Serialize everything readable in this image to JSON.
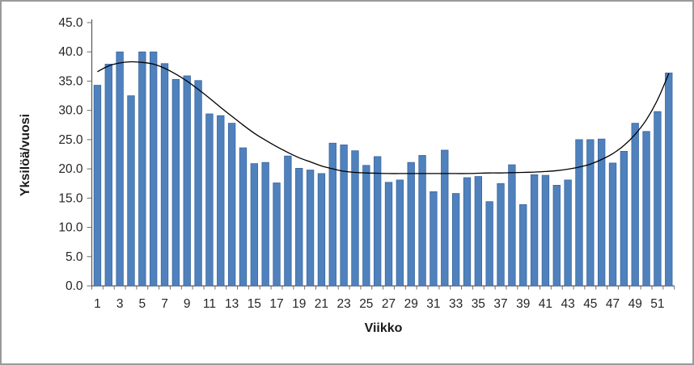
{
  "chart_data": {
    "type": "bar",
    "title": "",
    "xlabel": "Viikko",
    "ylabel": "Yksilöä/vuosi",
    "legend": "none",
    "grid": false,
    "ylim": [
      0,
      45
    ],
    "y_tick_step": 5,
    "y_tick_labels": [
      "0.0",
      "5.0",
      "10.0",
      "15.0",
      "20.0",
      "25.0",
      "30.0",
      "35.0",
      "40.0",
      "45.0"
    ],
    "x_axis_labeled_ticks": [
      1,
      3,
      5,
      7,
      9,
      11,
      13,
      15,
      17,
      19,
      21,
      23,
      25,
      27,
      29,
      31,
      33,
      35,
      37,
      39,
      41,
      43,
      45,
      47,
      49,
      51
    ],
    "categories": [
      1,
      2,
      3,
      4,
      5,
      6,
      7,
      8,
      9,
      10,
      11,
      12,
      13,
      14,
      15,
      16,
      17,
      18,
      19,
      20,
      21,
      22,
      23,
      24,
      25,
      26,
      27,
      28,
      29,
      30,
      31,
      32,
      33,
      34,
      35,
      36,
      37,
      38,
      39,
      40,
      41,
      42,
      43,
      44,
      45,
      46,
      47,
      48,
      49,
      50,
      51,
      52
    ],
    "series": [
      {
        "name": "Yksilöä/vuosi",
        "type": "bar",
        "color": "#4f81bd",
        "values": [
          34.3,
          37.9,
          40.0,
          32.5,
          40.0,
          40.0,
          38.0,
          35.3,
          35.9,
          35.1,
          29.4,
          29.1,
          27.8,
          23.6,
          20.9,
          21.1,
          17.6,
          22.2,
          20.1,
          19.8,
          19.2,
          24.4,
          24.1,
          23.1,
          20.6,
          22.1,
          17.7,
          18.1,
          21.1,
          22.3,
          16.1,
          23.2,
          15.8,
          18.5,
          18.7,
          14.4,
          17.5,
          20.7,
          13.9,
          19.0,
          18.9,
          17.2,
          18.1,
          25.0,
          25.0,
          25.1,
          21.0,
          23.0,
          27.8,
          26.4,
          29.8,
          36.4
        ]
      },
      {
        "name": "trendline",
        "type": "line",
        "color": "#000000",
        "values": [
          36.6,
          37.6,
          38.1,
          38.3,
          38.2,
          37.9,
          37.2,
          36.2,
          35.0,
          33.6,
          32.1,
          30.5,
          29.0,
          27.5,
          26.1,
          24.9,
          23.8,
          22.8,
          21.9,
          21.2,
          20.5,
          20.0,
          19.6,
          19.4,
          19.3,
          19.25,
          19.2,
          19.2,
          19.2,
          19.2,
          19.2,
          19.2,
          19.2,
          19.2,
          19.25,
          19.3,
          19.3,
          19.35,
          19.4,
          19.45,
          19.55,
          19.7,
          19.95,
          20.3,
          20.8,
          21.6,
          22.6,
          24.0,
          25.9,
          28.4,
          31.8,
          36.3
        ]
      }
    ],
    "colors": {
      "bar_fill": "#4f81bd",
      "bar_stroke": "#3a649f",
      "trend_line": "#000000",
      "axis_line": "#595959",
      "tick_mark": "#6e6e6e",
      "tick_text": "#262626",
      "frame_border": "#9a9a9a",
      "background": "#ffffff"
    }
  }
}
